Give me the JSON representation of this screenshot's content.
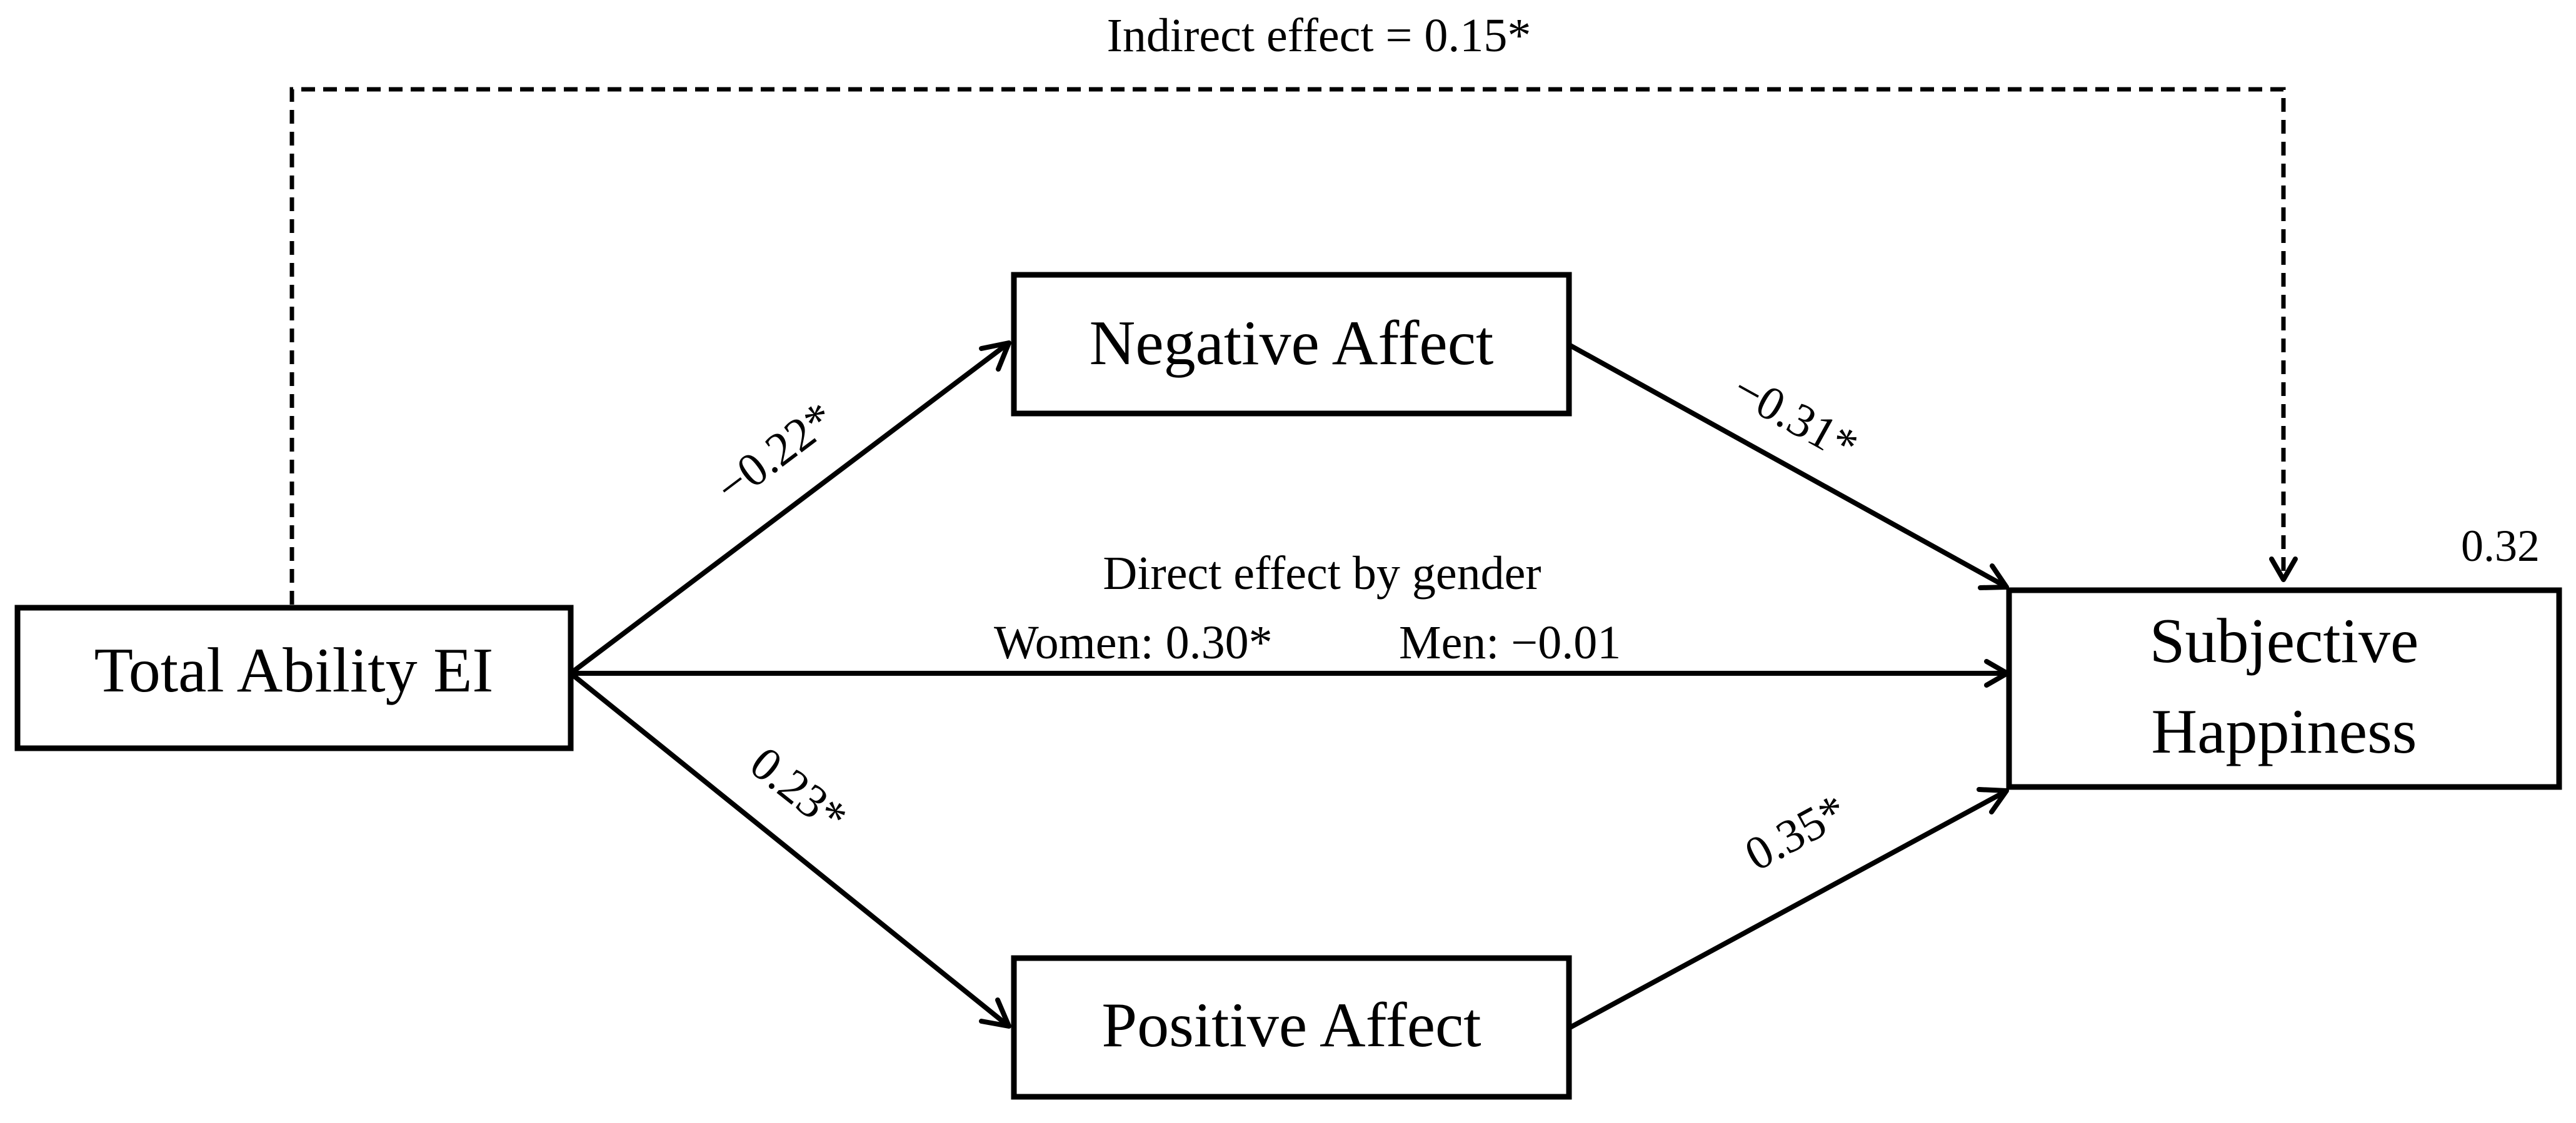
{
  "nodes": {
    "predictor": {
      "label": "Total Ability EI"
    },
    "negative": {
      "label": "Negative Affect"
    },
    "positive": {
      "label": "Positive Affect"
    },
    "outcome": {
      "line1": "Subjective",
      "line2": "Happiness"
    }
  },
  "outcome_r2": "0.32",
  "indirect_effect": "Indirect effect = 0.15*",
  "direct_effect": {
    "title": "Direct effect by gender",
    "women": "Women:  0.30*",
    "men": "Men: −0.01"
  },
  "paths": {
    "ei_to_negative": "−0.22*",
    "negative_to_happiness": "−0.31*",
    "ei_to_positive": "0.23*",
    "positive_to_happiness": "0.35*"
  }
}
